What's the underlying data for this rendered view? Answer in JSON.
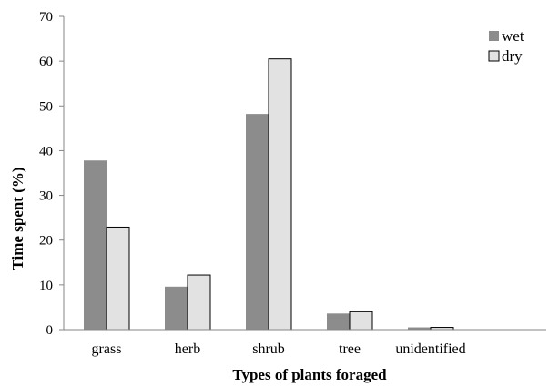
{
  "chart_data": {
    "type": "bar",
    "categories": [
      "grass",
      "herb",
      "shrub",
      "tree",
      "unidentified"
    ],
    "series": [
      {
        "name": "wet",
        "values": [
          37.8,
          9.6,
          48.2,
          3.6,
          0.5
        ],
        "color": "#8c8c8c"
      },
      {
        "name": "dry",
        "values": [
          22.9,
          12.2,
          60.5,
          4.0,
          0.5
        ],
        "color": "#e2e2e2"
      }
    ],
    "xlabel": "Types of plants foraged",
    "ylabel": "Time spent (%)",
    "ylim": [
      0,
      70
    ],
    "yticks": [
      0,
      10,
      20,
      30,
      40,
      50,
      60,
      70
    ],
    "grid": false,
    "legend_position": "top-right"
  }
}
